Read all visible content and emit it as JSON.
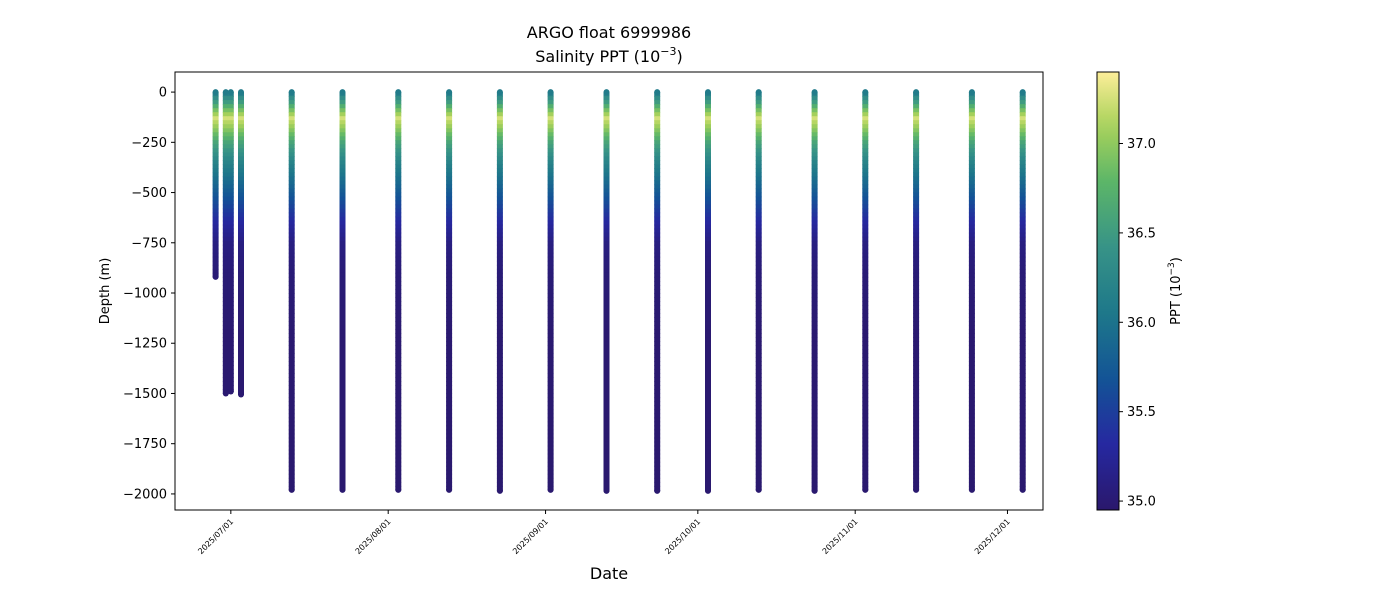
{
  "chart_data": {
    "type": "scatter",
    "title": "ARGO float 6999986",
    "subtitle_main": "Salinity PPT (10",
    "subtitle_sup": "−3",
    "subtitle_end": ")",
    "xlabel": "Date",
    "ylabel": "Depth (m)",
    "colorbar_label_main": "PPT (10",
    "colorbar_label_sup": "−3",
    "colorbar_label_end": ")",
    "xlim": [
      "2025-06-20",
      "2025-12-08"
    ],
    "ylim": [
      -2080,
      100
    ],
    "clim": [
      34.95,
      37.4
    ],
    "x_ticks": [
      {
        "date": "2025-07-01",
        "label": "2025/07/01"
      },
      {
        "date": "2025-08-01",
        "label": "2025/08/01"
      },
      {
        "date": "2025-09-01",
        "label": "2025/09/01"
      },
      {
        "date": "2025-10-01",
        "label": "2025/10/01"
      },
      {
        "date": "2025-11-01",
        "label": "2025/11/01"
      },
      {
        "date": "2025-12-01",
        "label": "2025/12/01"
      }
    ],
    "y_ticks": [
      0,
      -250,
      -500,
      -750,
      -1000,
      -1250,
      -1500,
      -1750,
      -2000
    ],
    "y_tick_labels": [
      "0",
      "−250",
      "−500",
      "−750",
      "−1000",
      "−1250",
      "−1500",
      "−1750",
      "−2000"
    ],
    "colorbar_ticks": [
      35.0,
      35.5,
      36.0,
      36.5,
      37.0
    ],
    "colorbar_tick_labels": [
      "35.0",
      "35.5",
      "36.0",
      "36.5",
      "37.0"
    ],
    "colormap": "haline",
    "profiles": [
      {
        "date": "2025-06-28",
        "max_depth": -920
      },
      {
        "date": "2025-06-30",
        "max_depth": -1500
      },
      {
        "date": "2025-07-01",
        "max_depth": -1490
      },
      {
        "date": "2025-07-03",
        "max_depth": -1505
      },
      {
        "date": "2025-07-13",
        "max_depth": -1980
      },
      {
        "date": "2025-07-23",
        "max_depth": -1980
      },
      {
        "date": "2025-08-03",
        "max_depth": -1980
      },
      {
        "date": "2025-08-13",
        "max_depth": -1980
      },
      {
        "date": "2025-08-23",
        "max_depth": -1985
      },
      {
        "date": "2025-09-02",
        "max_depth": -1980
      },
      {
        "date": "2025-09-13",
        "max_depth": -1985
      },
      {
        "date": "2025-09-23",
        "max_depth": -1985
      },
      {
        "date": "2025-10-03",
        "max_depth": -1985
      },
      {
        "date": "2025-10-13",
        "max_depth": -1980
      },
      {
        "date": "2025-10-24",
        "max_depth": -1985
      },
      {
        "date": "2025-11-03",
        "max_depth": -1980
      },
      {
        "date": "2025-11-13",
        "max_depth": -1980
      },
      {
        "date": "2025-11-24",
        "max_depth": -1980
      },
      {
        "date": "2025-12-04",
        "max_depth": -1980
      }
    ],
    "salinity_profile_typical": [
      {
        "depth": 0,
        "salinity": 36.1
      },
      {
        "depth": -50,
        "salinity": 36.5
      },
      {
        "depth": -100,
        "salinity": 37.0
      },
      {
        "depth": -130,
        "salinity": 37.25
      },
      {
        "depth": -180,
        "salinity": 37.0
      },
      {
        "depth": -250,
        "salinity": 36.6
      },
      {
        "depth": -350,
        "salinity": 36.2
      },
      {
        "depth": -450,
        "salinity": 35.9
      },
      {
        "depth": -550,
        "salinity": 35.6
      },
      {
        "depth": -650,
        "salinity": 35.3
      },
      {
        "depth": -750,
        "salinity": 35.1
      },
      {
        "depth": -900,
        "salinity": 35.02
      },
      {
        "depth": -1200,
        "salinity": 34.98
      },
      {
        "depth": -2000,
        "salinity": 34.97
      }
    ]
  }
}
